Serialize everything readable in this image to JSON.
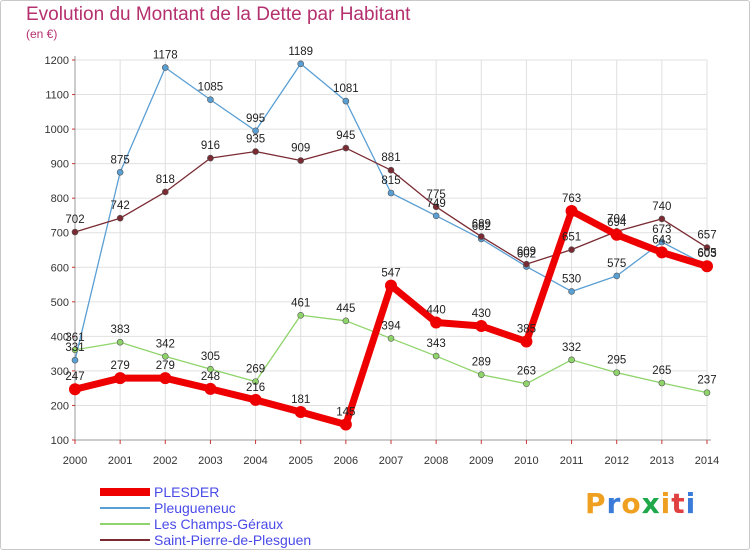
{
  "header": {
    "title": "Evolution du Montant de la Dette par Habitant",
    "unit": "(en €)"
  },
  "colors": {
    "title": "#b5306e",
    "legend_text": "#4a4ae8",
    "grid": "#e0e0e0"
  },
  "logo": {
    "text": "Proxiti",
    "colors": [
      "#f0a020",
      "#3a7ad8",
      "#f0a020",
      "#1fa84a",
      "#f0a020",
      "#e04040",
      "#3a7ad8"
    ]
  },
  "chart_data": {
    "type": "line",
    "title": "Evolution du Montant de la Dette par Habitant",
    "ylabel": "(en €)",
    "xlabel": "",
    "ylim": [
      100,
      1200
    ],
    "yticks": [
      100,
      200,
      300,
      400,
      500,
      600,
      700,
      800,
      900,
      1000,
      1100,
      1200
    ],
    "grid": true,
    "legend_position": "bottom-left",
    "x": [
      "2000",
      "2001",
      "2002",
      "2003",
      "2004",
      "2005",
      "2006",
      "2007",
      "2008",
      "2009",
      "2010",
      "2011",
      "2012",
      "2013",
      "2014"
    ],
    "series": [
      {
        "name": "PLESDER",
        "color": "#ee0000",
        "values": [
          247,
          279,
          279,
          248,
          216,
          181,
          145,
          547,
          440,
          430,
          385,
          763,
          694,
          643,
          603
        ]
      },
      {
        "name": "Pleugueneuc",
        "color": "#5a9fd4",
        "values": [
          331,
          875,
          1178,
          1085,
          995,
          1189,
          1081,
          815,
          749,
          682,
          602,
          530,
          575,
          673,
          605
        ]
      },
      {
        "name": "Les Champs-Géraux",
        "color": "#8fd46a",
        "values": [
          361,
          383,
          342,
          305,
          269,
          461,
          445,
          394,
          343,
          289,
          263,
          332,
          295,
          265,
          237
        ]
      },
      {
        "name": "Saint-Pierre-de-Plesguen",
        "color": "#7a2a32",
        "values": [
          702,
          742,
          818,
          916,
          935,
          909,
          945,
          881,
          775,
          689,
          609,
          651,
          704,
          740,
          657
        ]
      }
    ]
  }
}
